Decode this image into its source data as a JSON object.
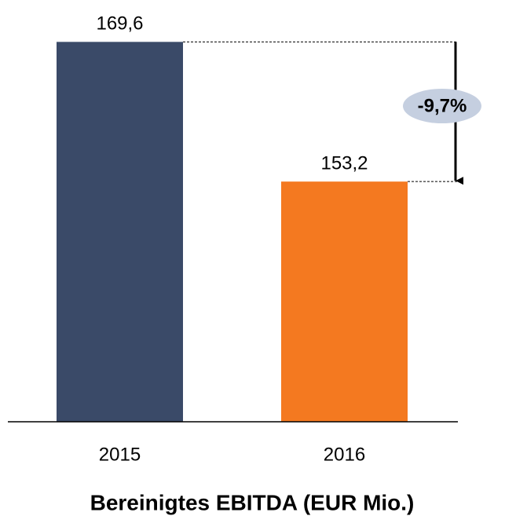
{
  "chart_data": {
    "type": "bar",
    "title": "Bereinigtes EBITDA (EUR Mio.)",
    "categories": [
      "2015",
      "2016"
    ],
    "values": [
      169.6,
      153.2
    ],
    "value_labels": [
      "169,6",
      "153,2"
    ],
    "colors": [
      "#3a4a68",
      "#f47920"
    ],
    "ylim": [
      125,
      170
    ],
    "annotation": "-9,7%"
  }
}
